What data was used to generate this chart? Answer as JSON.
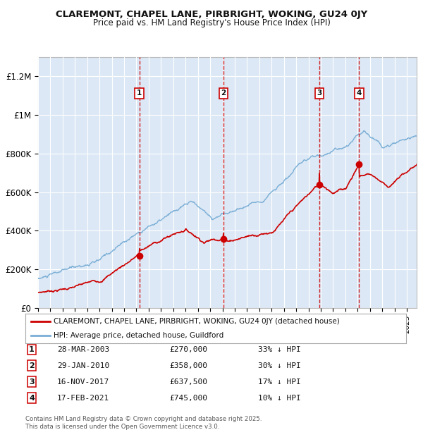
{
  "title": "CLAREMONT, CHAPEL LANE, PIRBRIGHT, WOKING, GU24 0JY",
  "subtitle": "Price paid vs. HM Land Registry's House Price Index (HPI)",
  "background_color": "#ffffff",
  "plot_bg_color": "#dce8f5",
  "grid_color": "#ffffff",
  "red_line_color": "#cc0000",
  "blue_line_color": "#7aaed6",
  "dashed_line_color": "#cc0000",
  "sale_events": [
    {
      "label": "1",
      "date_num": 2003.24,
      "price": 270000,
      "date_str": "28-MAR-2003",
      "pct": "33%"
    },
    {
      "label": "2",
      "date_num": 2010.08,
      "price": 358000,
      "date_str": "29-JAN-2010",
      "pct": "30%"
    },
    {
      "label": "3",
      "date_num": 2017.88,
      "price": 637500,
      "date_str": "16-NOV-2017",
      "pct": "17%"
    },
    {
      "label": "4",
      "date_num": 2021.12,
      "price": 745000,
      "date_str": "17-FEB-2021",
      "pct": "10%"
    }
  ],
  "legend_red": "CLAREMONT, CHAPEL LANE, PIRBRIGHT, WOKING, GU24 0JY (detached house)",
  "legend_blue": "HPI: Average price, detached house, Guildford",
  "footer": "Contains HM Land Registry data © Crown copyright and database right 2025.\nThis data is licensed under the Open Government Licence v3.0.",
  "ytick_labels": [
    "£0",
    "£200K",
    "£400K",
    "£600K",
    "£800K",
    "£1M",
    "£1.2M"
  ],
  "ytick_values": [
    0,
    200000,
    400000,
    600000,
    800000,
    1000000,
    1200000
  ],
  "ylim": [
    0,
    1300000
  ],
  "xlim_start": 1995.0,
  "xlim_end": 2025.8
}
